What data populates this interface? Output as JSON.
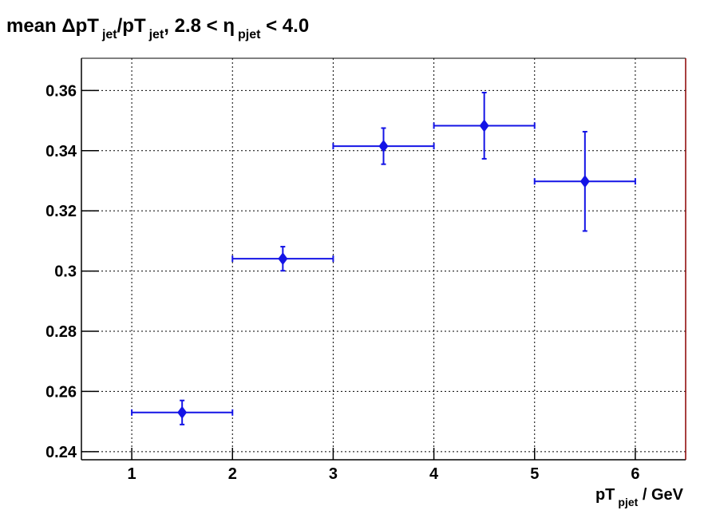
{
  "chart_data": {
    "type": "scatter",
    "title": [
      "mean ΔpT",
      "jet",
      "/pT",
      "jet",
      ", 2.8 < η",
      "pjet",
      " < 4.0"
    ],
    "x_label": [
      "pT",
      "pjet",
      " / GeV"
    ],
    "x": [
      1.5,
      2.5,
      3.5,
      4.5,
      5.5
    ],
    "xerr": [
      0.5,
      0.5,
      0.5,
      0.5,
      0.5
    ],
    "values": [
      0.253,
      0.3041,
      0.3415,
      0.3483,
      0.3298
    ],
    "yerr": [
      0.004,
      0.004,
      0.006,
      0.011,
      0.0165
    ],
    "color": "#1414e6",
    "xlim": [
      0.5,
      6.5
    ],
    "xticks": [
      1,
      2,
      3,
      4,
      5,
      6
    ],
    "ylim": [
      0.2373,
      0.3707
    ],
    "yticks": [
      0.24,
      0.26,
      0.28,
      0.3,
      0.32,
      0.34,
      0.36
    ],
    "grid": true
  }
}
